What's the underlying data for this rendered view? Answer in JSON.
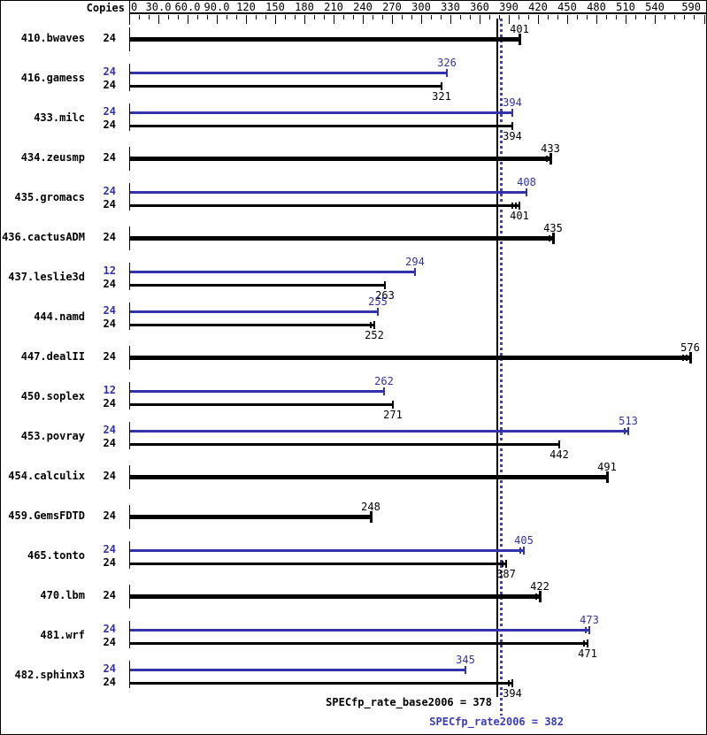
{
  "header": {
    "copies_label": "Copies"
  },
  "colors": {
    "base": "#000000",
    "peak": "#3232aa",
    "peak_text": "#3b3bbe",
    "peak_dotted_line": "#3c3cd6",
    "background": "#ffffff"
  },
  "chart_data": {
    "type": "bar",
    "orientation": "horizontal",
    "value_axis": {
      "min": 0,
      "max": 594,
      "minor_tick_step": 10,
      "major_tick_step": 30,
      "labels": [
        {
          "value": 0,
          "text": "0",
          "align": "start"
        },
        {
          "value": 30,
          "text": "30.0",
          "align": "center"
        },
        {
          "value": 60,
          "text": "60.0",
          "align": "center"
        },
        {
          "value": 90,
          "text": "90.0",
          "align": "center"
        },
        {
          "value": 120,
          "text": "120",
          "align": "center"
        },
        {
          "value": 150,
          "text": "150",
          "align": "center"
        },
        {
          "value": 180,
          "text": "180",
          "align": "center"
        },
        {
          "value": 210,
          "text": "210",
          "align": "center"
        },
        {
          "value": 240,
          "text": "240",
          "align": "center"
        },
        {
          "value": 270,
          "text": "270",
          "align": "center"
        },
        {
          "value": 300,
          "text": "300",
          "align": "center"
        },
        {
          "value": 330,
          "text": "330",
          "align": "center"
        },
        {
          "value": 360,
          "text": "360",
          "align": "center"
        },
        {
          "value": 390,
          "text": "390",
          "align": "center"
        },
        {
          "value": 420,
          "text": "420",
          "align": "center"
        },
        {
          "value": 450,
          "text": "450",
          "align": "center"
        },
        {
          "value": 480,
          "text": "480",
          "align": "center"
        },
        {
          "value": 510,
          "text": "510",
          "align": "center"
        },
        {
          "value": 540,
          "text": "540",
          "align": "center"
        },
        {
          "value": 590,
          "text": "590",
          "align": "end"
        }
      ],
      "end_tick_value": 591
    },
    "benchmarks": [
      {
        "name": "410.bwaves",
        "bars": [
          {
            "copies": "24",
            "series": "basepeak",
            "value": 401,
            "extra_ticks": 0
          }
        ]
      },
      {
        "name": "416.gamess",
        "bars": [
          {
            "copies": "24",
            "series": "peak",
            "value": 326,
            "extra_ticks": 0
          },
          {
            "copies": "24",
            "series": "base",
            "value": 321,
            "extra_ticks": 0
          }
        ]
      },
      {
        "name": "433.milc",
        "bars": [
          {
            "copies": "24",
            "series": "peak",
            "value": 394,
            "extra_ticks": 0
          },
          {
            "copies": "24",
            "series": "base",
            "value": 394,
            "extra_ticks": 0
          }
        ]
      },
      {
        "name": "434.zeusmp",
        "bars": [
          {
            "copies": "24",
            "series": "basepeak",
            "value": 433,
            "extra_ticks": 1
          }
        ]
      },
      {
        "name": "435.gromacs",
        "bars": [
          {
            "copies": "24",
            "series": "peak",
            "value": 408,
            "extra_ticks": 0
          },
          {
            "copies": "24",
            "series": "base",
            "value": 401,
            "extra_ticks": 2
          }
        ]
      },
      {
        "name": "436.cactusADM",
        "bars": [
          {
            "copies": "24",
            "series": "basepeak",
            "value": 435,
            "extra_ticks": 1
          }
        ]
      },
      {
        "name": "437.leslie3d",
        "bars": [
          {
            "copies": "12",
            "series": "peak",
            "value": 294,
            "extra_ticks": 0
          },
          {
            "copies": "24",
            "series": "base",
            "value": 263,
            "extra_ticks": 0
          }
        ]
      },
      {
        "name": "444.namd",
        "bars": [
          {
            "copies": "24",
            "series": "peak",
            "value": 255,
            "extra_ticks": 0
          },
          {
            "copies": "24",
            "series": "base",
            "value": 252,
            "extra_ticks": 1
          }
        ]
      },
      {
        "name": "447.dealII",
        "bars": [
          {
            "copies": "24",
            "series": "basepeak",
            "value": 576,
            "extra_ticks": 2
          }
        ]
      },
      {
        "name": "450.soplex",
        "bars": [
          {
            "copies": "12",
            "series": "peak",
            "value": 262,
            "extra_ticks": 0
          },
          {
            "copies": "24",
            "series": "base",
            "value": 271,
            "extra_ticks": 0
          }
        ]
      },
      {
        "name": "453.povray",
        "bars": [
          {
            "copies": "24",
            "series": "peak",
            "value": 513,
            "extra_ticks": 1
          },
          {
            "copies": "24",
            "series": "base",
            "value": 442,
            "extra_ticks": 0
          }
        ]
      },
      {
        "name": "454.calculix",
        "bars": [
          {
            "copies": "24",
            "series": "basepeak",
            "value": 491,
            "extra_ticks": 0
          }
        ]
      },
      {
        "name": "459.GemsFDTD",
        "bars": [
          {
            "copies": "24",
            "series": "basepeak",
            "value": 248,
            "extra_ticks": 0
          }
        ]
      },
      {
        "name": "465.tonto",
        "bars": [
          {
            "copies": "24",
            "series": "peak",
            "value": 405,
            "extra_ticks": 1
          },
          {
            "copies": "24",
            "series": "base",
            "value": 387,
            "extra_ticks": 1
          }
        ]
      },
      {
        "name": "470.lbm",
        "bars": [
          {
            "copies": "24",
            "series": "basepeak",
            "value": 422,
            "extra_ticks": 1
          }
        ]
      },
      {
        "name": "481.wrf",
        "bars": [
          {
            "copies": "24",
            "series": "peak",
            "value": 473,
            "extra_ticks": 1
          },
          {
            "copies": "24",
            "series": "base",
            "value": 471,
            "extra_ticks": 1
          }
        ]
      },
      {
        "name": "482.sphinx3",
        "bars": [
          {
            "copies": "24",
            "series": "peak",
            "value": 345,
            "extra_ticks": 0
          },
          {
            "copies": "24",
            "series": "base",
            "value": 394,
            "extra_ticks": 1
          }
        ]
      }
    ],
    "reference_lines": [
      {
        "id": "base",
        "value": 378,
        "style": "solid-black"
      },
      {
        "id": "peak",
        "value": 382,
        "style": "dotted-blue"
      }
    ]
  },
  "footer": {
    "base_result": "SPECfp_rate_base2006 = 378",
    "peak_result": "SPECfp_rate2006 = 382"
  }
}
